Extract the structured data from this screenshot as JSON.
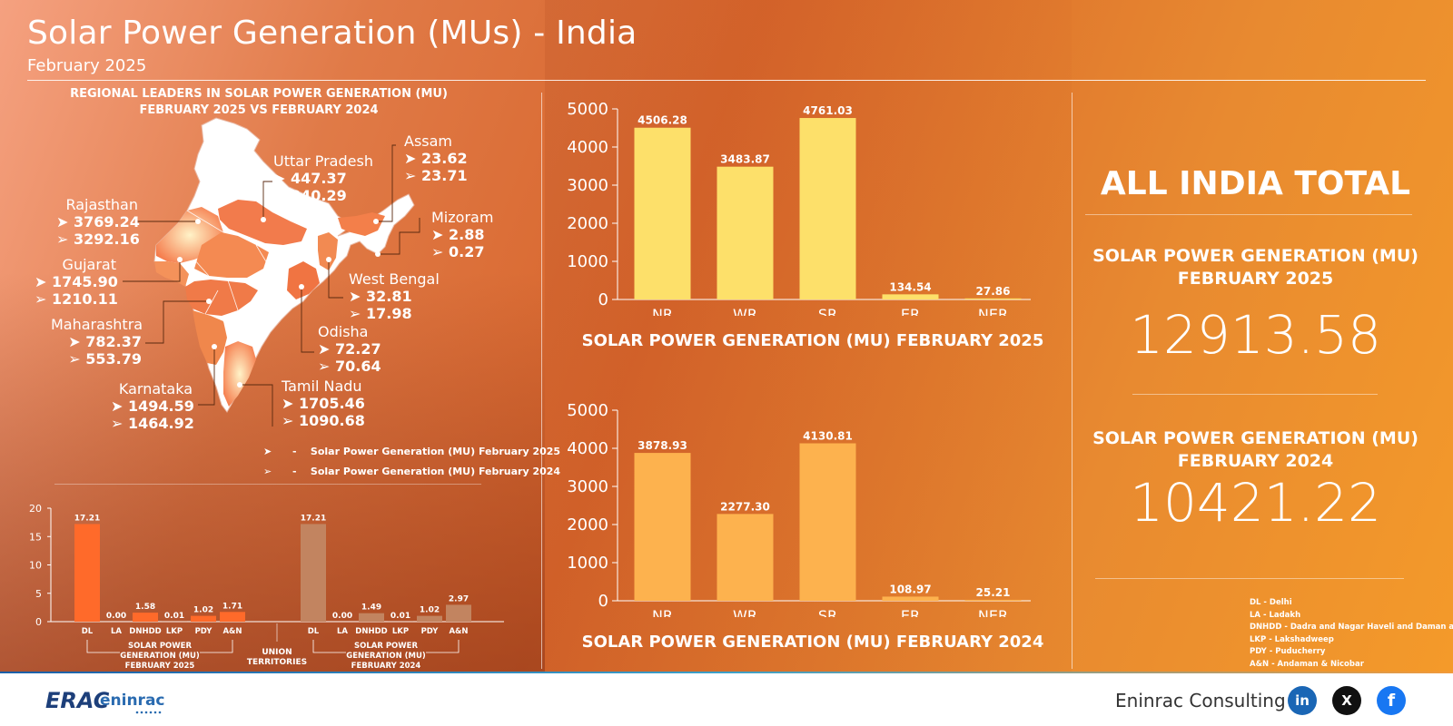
{
  "header": {
    "title": "Solar Power Generation (MUs) - India",
    "subtitle": "February 2025"
  },
  "map": {
    "title_line1": "REGIONAL LEADERS IN SOLAR POWER GENERATION (MU)",
    "title_line2": "FEBRUARY 2025 VS FEBRUARY 2024",
    "states": [
      {
        "name": "Uttar Pradesh",
        "v2025": "447.37",
        "v2024": "340.29"
      },
      {
        "name": "Assam",
        "v2025": "23.62",
        "v2024": "23.71"
      },
      {
        "name": "Rajasthan",
        "v2025": "3769.24",
        "v2024": "3292.16"
      },
      {
        "name": "Mizoram",
        "v2025": "2.88",
        "v2024": "0.27"
      },
      {
        "name": "Gujarat",
        "v2025": "1745.90",
        "v2024": "1210.11"
      },
      {
        "name": "West Bengal",
        "v2025": "32.81",
        "v2024": "17.98"
      },
      {
        "name": "Maharashtra",
        "v2025": "782.37",
        "v2024": "553.79"
      },
      {
        "name": "Odisha",
        "v2025": "72.27",
        "v2024": "70.64"
      },
      {
        "name": "Karnataka",
        "v2025": "1494.59",
        "v2024": "1464.92"
      },
      {
        "name": "Tamil Nadu",
        "v2025": "1705.46",
        "v2024": "1090.68"
      }
    ],
    "legend_2025": "Solar Power Generation (MU) February 2025",
    "legend_2024": "Solar Power Generation (MU) February 2024",
    "legend_dash": "-"
  },
  "chart_data": [
    {
      "type": "bar",
      "title": "SOLAR POWER GENERATION (MU) FEBRUARY 2025",
      "categories": [
        "NR",
        "WR",
        "SR",
        "ER",
        "NER"
      ],
      "values": [
        4506.28,
        3483.87,
        4761.03,
        134.54,
        27.86
      ],
      "labels": [
        "4506.28",
        "3483.87",
        "4761.03",
        "134.54",
        "27.86"
      ],
      "ylim": [
        0,
        5000
      ],
      "yticks": [
        0,
        1000,
        2000,
        3000,
        4000,
        5000
      ],
      "color": "#fde06a"
    },
    {
      "type": "bar",
      "title": "SOLAR POWER GENERATION (MU) FEBRUARY 2024",
      "categories": [
        "NR",
        "WR",
        "SR",
        "ER",
        "NER"
      ],
      "values": [
        3878.93,
        2277.3,
        4130.81,
        108.97,
        25.21
      ],
      "labels": [
        "3878.93",
        "2277.30",
        "4130.81",
        "108.97",
        "25.21"
      ],
      "ylim": [
        0,
        5000
      ],
      "yticks": [
        0,
        1000,
        2000,
        3000,
        4000,
        5000
      ],
      "color": "#fdb24e"
    },
    {
      "type": "bar",
      "title": "UNION TERRITORIES",
      "ylim": [
        0,
        20
      ],
      "yticks": [
        0,
        5,
        10,
        15,
        20
      ],
      "groups": [
        {
          "caption_lines": [
            "SOLAR POWER",
            "GENERATION (MU)",
            "FEBRUARY 2025"
          ],
          "categories": [
            "DL",
            "LA",
            "DNHDD",
            "LKP",
            "PDY",
            "A&N"
          ],
          "values": [
            17.21,
            0.0,
            1.58,
            0.01,
            1.02,
            1.71
          ],
          "labels": [
            "17.21",
            "0.00",
            "1.58",
            "0.01",
            "1.02",
            "1.71"
          ],
          "color": "#ff6a2a"
        },
        {
          "caption_lines": [
            "SOLAR POWER",
            "GENERATION (MU)",
            "FEBRUARY 2024"
          ],
          "categories": [
            "DL",
            "LA",
            "DNHDD",
            "LKP",
            "PDY",
            "A&N"
          ],
          "values": [
            17.21,
            0.0,
            1.49,
            0.01,
            1.02,
            2.97
          ],
          "labels": [
            "17.21",
            "0.00",
            "1.49",
            "0.01",
            "1.02",
            "2.97"
          ],
          "color": "#c28460"
        }
      ],
      "center_label_lines": [
        "UNION",
        "TERRITORIES"
      ]
    }
  ],
  "summary": {
    "heading": "ALL INDIA TOTAL",
    "label_2025_line1": "SOLAR POWER GENERATION (MU)",
    "label_2025_line2": "FEBRUARY 2025",
    "total_2025": "12913.58",
    "label_2024_line1": "SOLAR POWER GENERATION (MU)",
    "label_2024_line2": "FEBRUARY 2024",
    "total_2024": "10421.22",
    "abbreviations": [
      "DL - Delhi",
      "LA - Ladakh",
      "DNHDD - Dadra and Nagar Haveli and Daman and Diu",
      "LKP - Lakshadweep",
      "PDY - Puducherry",
      "A&N - Andaman & Nicobar"
    ]
  },
  "footer": {
    "logo_text": "ERAC",
    "logo_brand": "eninrac",
    "company": "Eninrac Consulting",
    "linkedin_icon_text": "in",
    "x_icon_text": "X",
    "facebook_icon_text": "f",
    "colors": {
      "linkedin": "#1a66b5",
      "x": "#111111",
      "facebook": "#1877f2"
    }
  }
}
